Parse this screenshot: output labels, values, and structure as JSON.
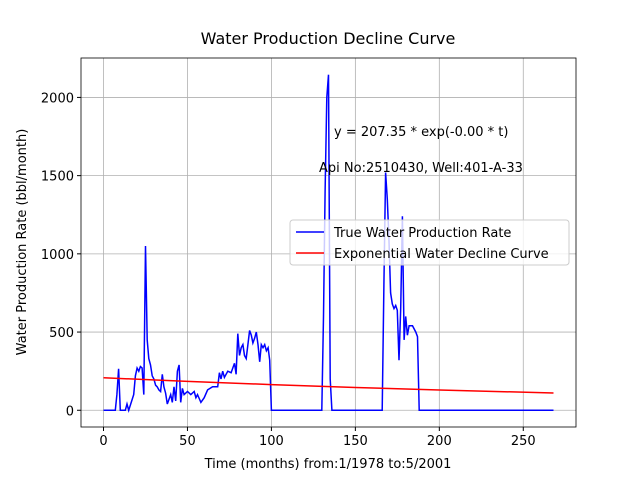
{
  "chart_data": {
    "type": "line",
    "title": "Water Production Decline Curve",
    "xlabel": "Time (months) from:1/1978 to:5/2001",
    "ylabel": "Water Production Rate (bbl/month)",
    "annotations": [
      "y = 207.35 * exp(-0.00 * t)",
      "Api No:2510430, Well:401-A-33"
    ],
    "xlim": [
      -13.4,
      281.4
    ],
    "ylim": [
      -107,
      2252
    ],
    "xticks": [
      0,
      50,
      100,
      150,
      200,
      250
    ],
    "yticks": [
      0,
      500,
      1000,
      1500,
      2000
    ],
    "grid": true,
    "legend": "center right",
    "series": [
      {
        "name": "True Water Production Rate",
        "color": "#0000ff",
        "x": [
          0,
          7,
          8,
          9,
          10,
          13,
          14,
          15,
          18,
          19,
          20,
          21,
          22,
          23,
          24,
          25,
          26,
          27,
          28,
          29,
          30,
          31,
          32,
          33,
          34,
          35,
          36,
          37,
          38,
          40,
          41,
          42,
          43,
          44,
          45,
          46,
          47,
          48,
          50,
          52,
          54,
          55,
          56,
          58,
          60,
          62,
          65,
          68,
          69,
          70,
          71,
          72,
          74,
          76,
          78,
          79,
          80,
          81,
          82,
          83,
          84,
          85,
          86,
          87,
          88,
          89,
          90,
          91,
          92,
          93,
          94,
          95,
          96,
          97,
          98,
          99,
          100,
          130,
          131,
          132,
          133,
          134,
          135,
          136,
          166,
          167,
          168,
          169,
          170,
          171,
          172,
          173,
          174,
          175,
          176,
          177,
          178,
          179,
          180,
          181,
          182,
          184,
          186,
          187,
          188,
          268
        ],
        "values": [
          0,
          0,
          100,
          265,
          0,
          0,
          40,
          0,
          100,
          220,
          270,
          250,
          280,
          270,
          100,
          1050,
          450,
          330,
          290,
          220,
          200,
          160,
          150,
          130,
          120,
          230,
          150,
          110,
          40,
          100,
          50,
          150,
          60,
          250,
          290,
          50,
          140,
          100,
          120,
          100,
          120,
          80,
          100,
          50,
          80,
          130,
          150,
          150,
          240,
          200,
          250,
          210,
          250,
          240,
          300,
          230,
          490,
          350,
          400,
          420,
          350,
          330,
          420,
          510,
          480,
          430,
          460,
          500,
          420,
          310,
          420,
          400,
          420,
          380,
          400,
          320,
          0,
          0,
          600,
          1400,
          2000,
          2145,
          200,
          0,
          0,
          800,
          1520,
          1350,
          1100,
          750,
          680,
          650,
          670,
          640,
          320,
          650,
          1240,
          450,
          600,
          480,
          540,
          540,
          500,
          470,
          0,
          0
        ]
      },
      {
        "name": "Exponential Water Decline Curve",
        "color": "#ff0000",
        "x": [
          0,
          50,
          100,
          150,
          200,
          268
        ],
        "values": [
          207.4,
          184.3,
          163.9,
          145.7,
          129.6,
          110.2
        ]
      }
    ]
  }
}
